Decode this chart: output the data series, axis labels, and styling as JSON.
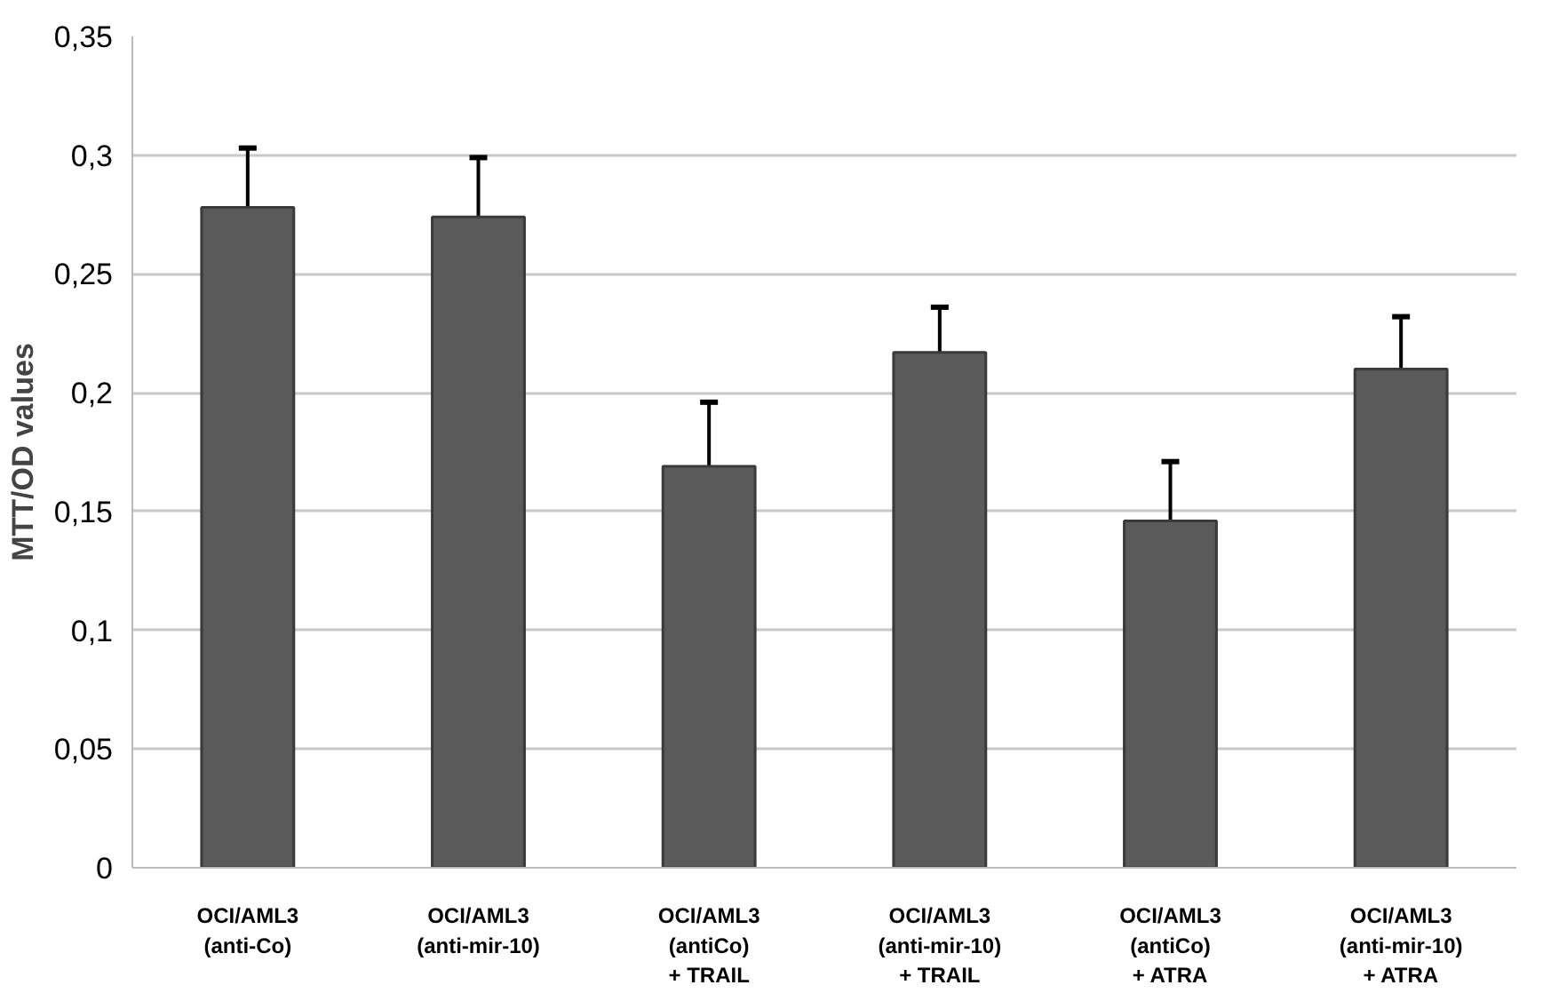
{
  "chart_data": {
    "type": "bar",
    "ylabel": "MTT/OD values",
    "categories": [
      "OCI/AML3\n(anti-Co)",
      "OCI/AML3\n(anti-mir-10)",
      "OCI/AML3\n(antiCo)\n+ TRAIL",
      "OCI/AML3\n(anti-mir-10)\n+ TRAIL",
      "OCI/AML3\n(antiCo)\n+ ATRA",
      "OCI/AML3\n(anti-mir-10)\n+ ATRA"
    ],
    "values": [
      0.278,
      0.274,
      0.169,
      0.217,
      0.146,
      0.21
    ],
    "errors": [
      0.025,
      0.025,
      0.027,
      0.019,
      0.025,
      0.022
    ],
    "color": "#5a5a5a",
    "ylim": [
      0,
      0.35
    ],
    "yticks": [
      0,
      {
        "value": 0.05,
        "label": "0,05"
      },
      {
        "value": 0.1,
        "label": "0,1"
      },
      {
        "value": 0.15,
        "label": "0,15"
      },
      {
        "value": 0.2,
        "label": "0,2"
      },
      {
        "value": 0.25,
        "label": "0,25"
      },
      {
        "value": 0.3,
        "label": "0,3"
      },
      {
        "value": 0.35,
        "label": "0,35"
      }
    ],
    "grid": "y"
  }
}
